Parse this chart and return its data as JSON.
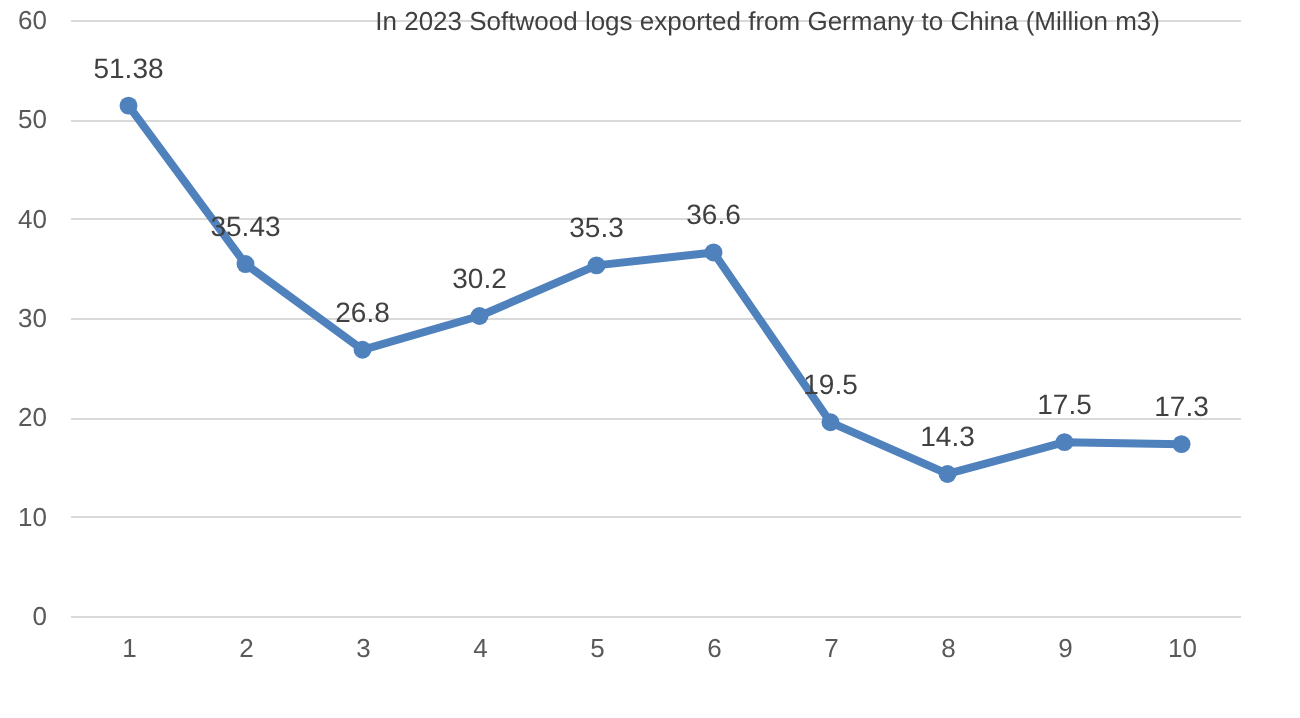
{
  "chart_data": {
    "type": "line",
    "title": "In 2023 Softwood logs exported from Germany to China (Million m3)",
    "categories": [
      "1",
      "2",
      "3",
      "4",
      "5",
      "6",
      "7",
      "8",
      "9",
      "10"
    ],
    "series": [
      {
        "color": "#4f81bd",
        "values": [
          51.38,
          35.43,
          26.8,
          30.2,
          35.3,
          36.6,
          19.5,
          14.3,
          17.5,
          17.3
        ]
      }
    ],
    "ylim": [
      0,
      60
    ],
    "yticks": [
      0,
      10,
      20,
      30,
      40,
      50,
      60
    ],
    "grid": "y",
    "marker": "circle",
    "line_style": "solid",
    "data_labels": true
  }
}
